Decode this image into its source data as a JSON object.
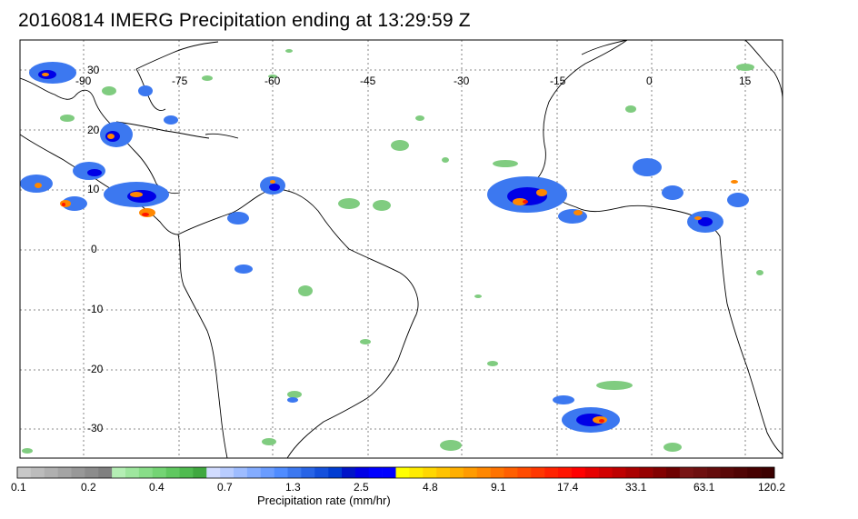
{
  "title": "20160814 IMERG Precipitation ending at 13:29:59 Z",
  "map": {
    "lon_labels": [
      "-90",
      "-75",
      "-60",
      "-45",
      "-30",
      "-15",
      "0",
      "15"
    ],
    "lat_labels": [
      "30",
      "20",
      "10",
      "0",
      "-10",
      "-20",
      "-30"
    ],
    "lon_range": [
      -95,
      25
    ],
    "lat_range": [
      -36,
      35
    ],
    "gridlines": "dotted"
  },
  "colorbar": {
    "label": "Precipitation rate (mm/hr)",
    "tick_labels": [
      "0.1",
      "0.2",
      "0.4",
      "0.7",
      "1.3",
      "2.5",
      "4.8",
      "9.1",
      "17.4",
      "33.1",
      "63.1",
      "120.2"
    ],
    "colors": [
      "#c8c8c8",
      "#bcbcbc",
      "#b0b0b0",
      "#a4a4a4",
      "#989898",
      "#8c8c8c",
      "#808080",
      "#b4eeb4",
      "#9ee69e",
      "#88dd88",
      "#74d474",
      "#60c860",
      "#50bb50",
      "#40a840",
      "#d2dcff",
      "#b8ccff",
      "#9ebcff",
      "#84acff",
      "#6a9cff",
      "#508cff",
      "#3c78f0",
      "#2864e6",
      "#1450dc",
      "#003cd2",
      "#0014c8",
      "#0000e6",
      "#0000ff",
      "#0000ff",
      "#ffff00",
      "#ffeb00",
      "#ffd700",
      "#ffc300",
      "#ffaf00",
      "#ff9b00",
      "#ff8700",
      "#ff7300",
      "#ff5f00",
      "#ff4b00",
      "#ff3700",
      "#ff2300",
      "#ff1400",
      "#ff0000",
      "#e60000",
      "#d20000",
      "#be0000",
      "#aa0000",
      "#960000",
      "#820000",
      "#6e0000",
      "#781414",
      "#6e1010",
      "#640c0c",
      "#5a0808",
      "#500404",
      "#460000",
      "#3c0000"
    ]
  },
  "precip_colors": {
    "light": "#80cc80",
    "blue": "#3c78f0",
    "navy": "#0000e6",
    "yellow": "#ffd700",
    "orange": "#ff8700",
    "red": "#ff1400"
  }
}
